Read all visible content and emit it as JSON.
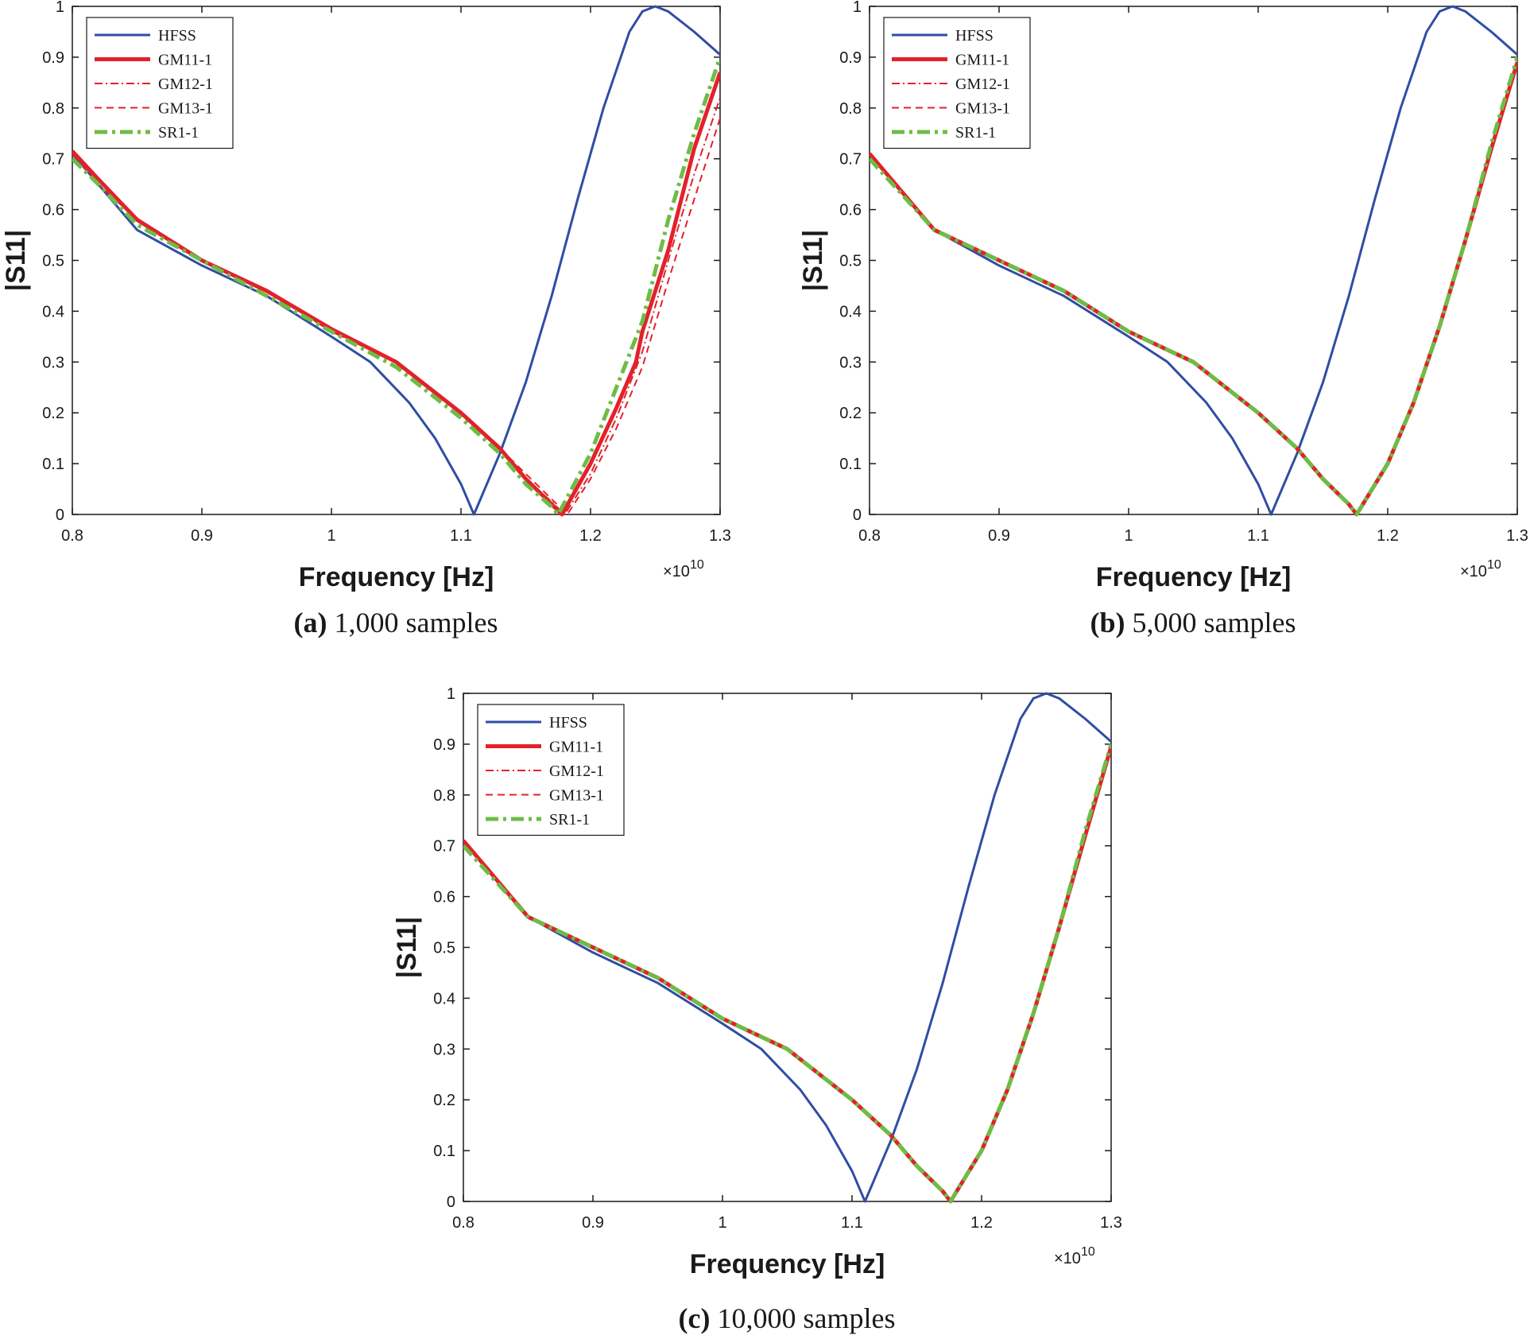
{
  "colors": {
    "hfss": "#2f4ea3",
    "gm": "#e3212b",
    "sr": "#6cbd45",
    "axis": "#1a1a1a"
  },
  "chart_data": [
    {
      "type": "line",
      "caption_tag": "(a)",
      "caption_text": " 1,000 samples",
      "xlabel": "Frequency [Hz]",
      "ylabel": "|S11|",
      "x_exponent": "×10",
      "x_exponent_power": "10",
      "xlim": [
        0.8,
        1.3
      ],
      "ylim": [
        0,
        1
      ],
      "xticks": [
        "0.8",
        "0.9",
        "1",
        "1.1",
        "1.2",
        "1.3"
      ],
      "yticks": [
        "0",
        "0.1",
        "0.2",
        "0.3",
        "0.4",
        "0.5",
        "0.6",
        "0.7",
        "0.8",
        "0.9",
        "1"
      ],
      "legend_position": "top-left",
      "series": [
        {
          "name": "HFSS",
          "style": "solid",
          "color_key": "hfss",
          "x": [
            0.8,
            0.85,
            0.9,
            0.95,
            1.0,
            1.03,
            1.06,
            1.08,
            1.1,
            1.11,
            1.13,
            1.15,
            1.17,
            1.19,
            1.21,
            1.23,
            1.24,
            1.25,
            1.26,
            1.28,
            1.3
          ],
          "y": [
            0.71,
            0.56,
            0.49,
            0.43,
            0.35,
            0.3,
            0.22,
            0.15,
            0.06,
            0.0,
            0.12,
            0.26,
            0.43,
            0.62,
            0.8,
            0.95,
            0.99,
            1.0,
            0.99,
            0.95,
            0.905
          ]
        },
        {
          "name": "GM11-1",
          "style": "thick",
          "color_key": "gm",
          "x": [
            0.8,
            0.82,
            0.85,
            0.9,
            0.95,
            1.0,
            1.05,
            1.1,
            1.13,
            1.15,
            1.17,
            1.178,
            1.2,
            1.22,
            1.235,
            1.24,
            1.26,
            1.28,
            1.3
          ],
          "y": [
            0.715,
            0.66,
            0.58,
            0.5,
            0.44,
            0.365,
            0.3,
            0.2,
            0.13,
            0.07,
            0.02,
            0.0,
            0.1,
            0.21,
            0.3,
            0.36,
            0.52,
            0.72,
            0.87
          ]
        },
        {
          "name": "GM12-1",
          "style": "dashdot",
          "color_key": "gm",
          "x": [
            0.8,
            0.82,
            0.85,
            0.9,
            0.95,
            1.0,
            1.05,
            1.1,
            1.13,
            1.15,
            1.17,
            1.18,
            1.2,
            1.22,
            1.24,
            1.26,
            1.28,
            1.3
          ],
          "y": [
            0.71,
            0.65,
            0.58,
            0.5,
            0.44,
            0.36,
            0.3,
            0.2,
            0.13,
            0.07,
            0.025,
            0.0,
            0.08,
            0.19,
            0.32,
            0.5,
            0.67,
            0.82
          ]
        },
        {
          "name": "GM13-1",
          "style": "dashed",
          "color_key": "gm",
          "x": [
            0.8,
            0.82,
            0.85,
            0.9,
            0.95,
            1.0,
            1.05,
            1.1,
            1.13,
            1.15,
            1.17,
            1.182,
            1.2,
            1.22,
            1.24,
            1.26,
            1.28,
            1.3
          ],
          "y": [
            0.71,
            0.66,
            0.58,
            0.5,
            0.44,
            0.36,
            0.3,
            0.2,
            0.13,
            0.08,
            0.03,
            0.0,
            0.07,
            0.17,
            0.29,
            0.46,
            0.62,
            0.78
          ]
        },
        {
          "name": "SR1-1",
          "style": "dashdot-thick",
          "color_key": "sr",
          "x": [
            0.8,
            0.82,
            0.85,
            0.9,
            0.95,
            1.0,
            1.05,
            1.1,
            1.13,
            1.15,
            1.17,
            1.175,
            1.2,
            1.22,
            1.24,
            1.26,
            1.28,
            1.3
          ],
          "y": [
            0.7,
            0.65,
            0.57,
            0.5,
            0.43,
            0.36,
            0.29,
            0.19,
            0.12,
            0.06,
            0.015,
            0.0,
            0.12,
            0.25,
            0.38,
            0.58,
            0.75,
            0.9
          ]
        }
      ]
    },
    {
      "type": "line",
      "caption_tag": "(b)",
      "caption_text": " 5,000 samples",
      "xlabel": "Frequency [Hz]",
      "ylabel": "|S11|",
      "x_exponent": "×10",
      "x_exponent_power": "10",
      "xlim": [
        0.8,
        1.3
      ],
      "ylim": [
        0,
        1
      ],
      "xticks": [
        "0.8",
        "0.9",
        "1",
        "1.1",
        "1.2",
        "1.3"
      ],
      "yticks": [
        "0",
        "0.1",
        "0.2",
        "0.3",
        "0.4",
        "0.5",
        "0.6",
        "0.7",
        "0.8",
        "0.9",
        "1"
      ],
      "legend_position": "top-left",
      "series": [
        {
          "name": "HFSS",
          "style": "solid",
          "color_key": "hfss",
          "x": [
            0.8,
            0.85,
            0.9,
            0.95,
            1.0,
            1.03,
            1.06,
            1.08,
            1.1,
            1.11,
            1.13,
            1.15,
            1.17,
            1.19,
            1.21,
            1.23,
            1.24,
            1.25,
            1.26,
            1.28,
            1.3
          ],
          "y": [
            0.71,
            0.56,
            0.49,
            0.43,
            0.35,
            0.3,
            0.22,
            0.15,
            0.06,
            0.0,
            0.12,
            0.26,
            0.43,
            0.62,
            0.8,
            0.95,
            0.99,
            1.0,
            0.99,
            0.95,
            0.905
          ]
        },
        {
          "name": "GM11-1",
          "style": "thick",
          "color_key": "gm",
          "x": [
            0.8,
            0.85,
            0.9,
            0.95,
            1.0,
            1.05,
            1.1,
            1.13,
            1.15,
            1.17,
            1.176,
            1.2,
            1.22,
            1.24,
            1.26,
            1.28,
            1.3
          ],
          "y": [
            0.71,
            0.56,
            0.5,
            0.44,
            0.36,
            0.3,
            0.2,
            0.13,
            0.07,
            0.02,
            0.0,
            0.1,
            0.22,
            0.37,
            0.54,
            0.72,
            0.89
          ]
        },
        {
          "name": "GM12-1",
          "style": "dashdot",
          "color_key": "gm",
          "x": [
            0.8,
            0.85,
            0.9,
            0.95,
            1.0,
            1.05,
            1.1,
            1.13,
            1.15,
            1.17,
            1.176,
            1.2,
            1.22,
            1.24,
            1.26,
            1.28,
            1.3
          ],
          "y": [
            0.71,
            0.56,
            0.5,
            0.44,
            0.36,
            0.3,
            0.2,
            0.13,
            0.07,
            0.02,
            0.0,
            0.1,
            0.22,
            0.37,
            0.54,
            0.72,
            0.89
          ]
        },
        {
          "name": "GM13-1",
          "style": "dashed",
          "color_key": "gm",
          "x": [
            0.8,
            0.85,
            0.9,
            0.95,
            1.0,
            1.05,
            1.1,
            1.13,
            1.15,
            1.17,
            1.176,
            1.2,
            1.22,
            1.24,
            1.26,
            1.28,
            1.3
          ],
          "y": [
            0.71,
            0.56,
            0.5,
            0.44,
            0.36,
            0.3,
            0.2,
            0.13,
            0.07,
            0.02,
            0.0,
            0.1,
            0.22,
            0.37,
            0.54,
            0.72,
            0.885
          ]
        },
        {
          "name": "SR1-1",
          "style": "dashdot-thick",
          "color_key": "sr",
          "x": [
            0.8,
            0.85,
            0.9,
            0.95,
            1.0,
            1.05,
            1.1,
            1.13,
            1.15,
            1.17,
            1.176,
            1.2,
            1.22,
            1.24,
            1.26,
            1.28,
            1.3
          ],
          "y": [
            0.7,
            0.56,
            0.5,
            0.44,
            0.36,
            0.3,
            0.2,
            0.13,
            0.07,
            0.02,
            0.0,
            0.1,
            0.22,
            0.37,
            0.54,
            0.73,
            0.9
          ]
        }
      ]
    },
    {
      "type": "line",
      "caption_tag": "(c)",
      "caption_text": " 10,000 samples",
      "xlabel": "Frequency [Hz]",
      "ylabel": "|S11|",
      "x_exponent": "×10",
      "x_exponent_power": "10",
      "xlim": [
        0.8,
        1.3
      ],
      "ylim": [
        0,
        1
      ],
      "xticks": [
        "0.8",
        "0.9",
        "1",
        "1.1",
        "1.2",
        "1.3"
      ],
      "yticks": [
        "0",
        "0.1",
        "0.2",
        "0.3",
        "0.4",
        "0.5",
        "0.6",
        "0.7",
        "0.8",
        "0.9",
        "1"
      ],
      "legend_position": "top-left",
      "series": [
        {
          "name": "HFSS",
          "style": "solid",
          "color_key": "hfss",
          "x": [
            0.8,
            0.85,
            0.9,
            0.95,
            1.0,
            1.03,
            1.06,
            1.08,
            1.1,
            1.11,
            1.13,
            1.15,
            1.17,
            1.19,
            1.21,
            1.23,
            1.24,
            1.25,
            1.26,
            1.28,
            1.3
          ],
          "y": [
            0.71,
            0.56,
            0.49,
            0.43,
            0.35,
            0.3,
            0.22,
            0.15,
            0.06,
            0.0,
            0.12,
            0.26,
            0.43,
            0.62,
            0.8,
            0.95,
            0.99,
            1.0,
            0.99,
            0.95,
            0.905
          ]
        },
        {
          "name": "GM11-1",
          "style": "thick",
          "color_key": "gm",
          "x": [
            0.8,
            0.85,
            0.9,
            0.95,
            1.0,
            1.05,
            1.1,
            1.13,
            1.15,
            1.17,
            1.176,
            1.2,
            1.22,
            1.24,
            1.26,
            1.28,
            1.3
          ],
          "y": [
            0.71,
            0.56,
            0.5,
            0.44,
            0.36,
            0.3,
            0.2,
            0.13,
            0.07,
            0.02,
            0.0,
            0.1,
            0.22,
            0.37,
            0.54,
            0.72,
            0.895
          ]
        },
        {
          "name": "GM12-1",
          "style": "dashdot",
          "color_key": "gm",
          "x": [
            0.8,
            0.85,
            0.9,
            0.95,
            1.0,
            1.05,
            1.1,
            1.13,
            1.15,
            1.17,
            1.176,
            1.2,
            1.22,
            1.24,
            1.26,
            1.28,
            1.3
          ],
          "y": [
            0.71,
            0.56,
            0.5,
            0.44,
            0.36,
            0.3,
            0.2,
            0.13,
            0.07,
            0.02,
            0.0,
            0.1,
            0.22,
            0.37,
            0.54,
            0.72,
            0.895
          ]
        },
        {
          "name": "GM13-1",
          "style": "dashed",
          "color_key": "gm",
          "x": [
            0.8,
            0.85,
            0.9,
            0.95,
            1.0,
            1.05,
            1.1,
            1.13,
            1.15,
            1.17,
            1.176,
            1.2,
            1.22,
            1.24,
            1.26,
            1.28,
            1.3
          ],
          "y": [
            0.71,
            0.56,
            0.5,
            0.44,
            0.36,
            0.3,
            0.2,
            0.13,
            0.07,
            0.02,
            0.0,
            0.1,
            0.22,
            0.37,
            0.54,
            0.72,
            0.895
          ]
        },
        {
          "name": "SR1-1",
          "style": "dashdot-thick",
          "color_key": "sr",
          "x": [
            0.8,
            0.85,
            0.9,
            0.95,
            1.0,
            1.05,
            1.1,
            1.13,
            1.15,
            1.17,
            1.176,
            1.2,
            1.22,
            1.24,
            1.26,
            1.28,
            1.3
          ],
          "y": [
            0.7,
            0.56,
            0.5,
            0.44,
            0.36,
            0.3,
            0.2,
            0.13,
            0.07,
            0.02,
            0.0,
            0.1,
            0.22,
            0.37,
            0.54,
            0.73,
            0.9
          ]
        }
      ]
    }
  ]
}
